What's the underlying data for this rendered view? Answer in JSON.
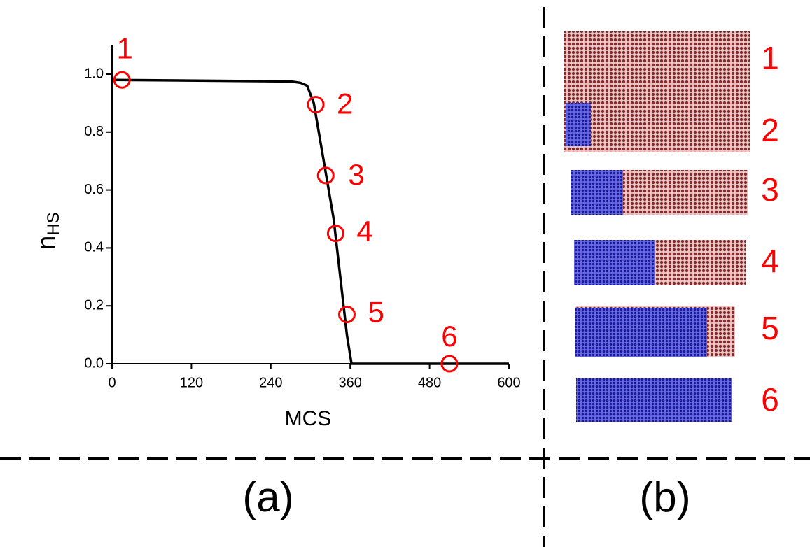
{
  "chart_data": {
    "type": "line",
    "xlabel": "MCS",
    "ylabel": "n",
    "ylabel_sub": "HS",
    "xlim": [
      0,
      600
    ],
    "ylim": [
      0,
      1.1
    ],
    "xticks": [
      0,
      120,
      240,
      360,
      480,
      600
    ],
    "yticks": [
      {
        "value": 0,
        "label": "0.0"
      },
      {
        "value": 0.2,
        "label": "0.2"
      },
      {
        "value": 0.4,
        "label": "0.4"
      },
      {
        "value": 0.6,
        "label": "0.6"
      },
      {
        "value": 0.8,
        "label": "0.8"
      },
      {
        "value": 1,
        "label": "1.0"
      }
    ],
    "series": [
      {
        "color": "#000000",
        "x": [
          0,
          270,
          285,
          295,
          305,
          320,
          335,
          345,
          355,
          362,
          600
        ],
        "values": [
          0.98,
          0.975,
          0.97,
          0.96,
          0.9,
          0.7,
          0.5,
          0.3,
          0.1,
          0,
          0
        ]
      }
    ],
    "points": {
      "color": "#ff0000",
      "x": [
        15,
        308,
        323,
        338,
        355,
        510
      ],
      "values": [
        0.98,
        0.895,
        0.65,
        0.45,
        0.17,
        0
      ],
      "labels": [
        "1",
        "2",
        "3",
        "4",
        "5",
        "6"
      ]
    },
    "panel_label": "(a)"
  },
  "snapshots": {
    "labels": [
      "1",
      "2",
      "3",
      "4",
      "5",
      "6"
    ],
    "panel_label": "(b)"
  }
}
